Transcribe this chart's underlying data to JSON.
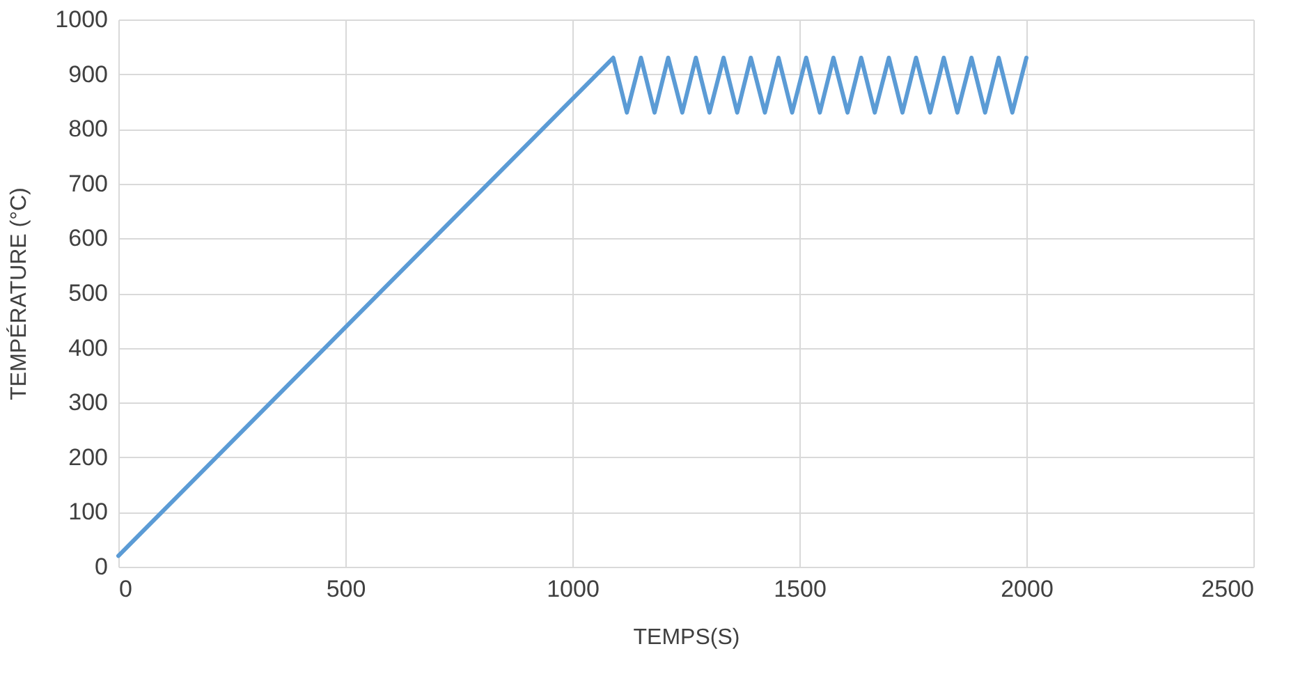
{
  "chart_data": {
    "type": "line",
    "xlabel": "TEMPS(S)",
    "ylabel": "TEMPÉRATURE (°C)",
    "series": [
      {
        "color": "#5b9bd5",
        "x": [
          0,
          1090,
          1120,
          1151,
          1181,
          1211,
          1242,
          1272,
          1302,
          1333,
          1363,
          1393,
          1424,
          1454,
          1484,
          1515,
          1545,
          1575,
          1606,
          1636,
          1666,
          1697,
          1727,
          1757,
          1788,
          1818,
          1848,
          1879,
          1909,
          1939,
          1969,
          2000
        ],
        "values": [
          20,
          930,
          830,
          930,
          830,
          930,
          830,
          930,
          830,
          930,
          830,
          930,
          830,
          930,
          830,
          930,
          830,
          930,
          830,
          930,
          830,
          930,
          830,
          930,
          830,
          930,
          830,
          930,
          830,
          930,
          830,
          930
        ]
      }
    ],
    "xlim": [
      0,
      2500
    ],
    "xticks": [
      0,
      500,
      1000,
      1500,
      2000,
      2500
    ],
    "ylim": [
      0,
      1000
    ],
    "yticks": [
      0,
      100,
      200,
      300,
      400,
      500,
      600,
      700,
      800,
      900,
      1000
    ],
    "grid": true,
    "marker": "none",
    "line_style": "solid"
  }
}
